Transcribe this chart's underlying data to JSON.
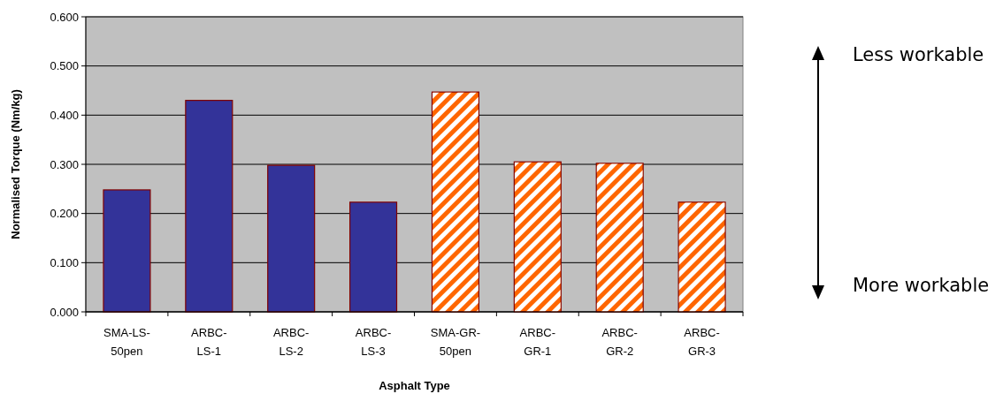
{
  "chart_data": {
    "type": "bar",
    "xlabel": "Asphalt Type",
    "ylabel": "Normalised Torque (Nm/kg)",
    "categories": [
      "SMA-LS-50pen",
      "ARBC-LS-1",
      "ARBC-LS-2",
      "ARBC-LS-3",
      "SMA-GR-50pen",
      "ARBC-GR-1",
      "ARBC-GR-2",
      "ARBC-GR-3"
    ],
    "values": [
      0.248,
      0.43,
      0.298,
      0.223,
      0.447,
      0.305,
      0.302,
      0.223
    ],
    "colors": [
      "#333399",
      "#333399",
      "#333399",
      "#333399",
      "#ff6600",
      "#ff6600",
      "#ff6600",
      "#ff6600"
    ],
    "ylim": [
      0,
      0.6
    ],
    "yticks": [
      {
        "value": 0,
        "label": "0.000"
      },
      {
        "value": 0.1,
        "label": "0.100"
      },
      {
        "value": 0.2,
        "label": "0.200"
      },
      {
        "value": 0.3,
        "label": "0.300"
      },
      {
        "value": 0.4,
        "label": "0.400"
      },
      {
        "value": 0.5,
        "label": "0.500"
      },
      {
        "value": 0.6,
        "label": "0.600"
      }
    ],
    "grid": "y",
    "annotations": [
      "Less workable",
      "More workable"
    ]
  }
}
